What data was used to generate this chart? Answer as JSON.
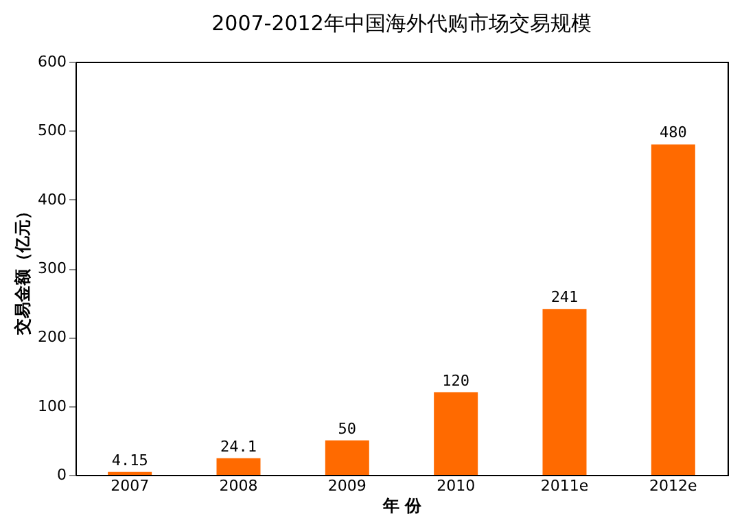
{
  "chart_data": {
    "type": "bar",
    "title": "2007-2012年中国海外代购市场交易规模",
    "xlabel": "年 份",
    "ylabel": "交易金额（亿元）",
    "categories": [
      "2007",
      "2008",
      "2009",
      "2010",
      "2011e",
      "2012e"
    ],
    "values": [
      4.15,
      24.1,
      50,
      120,
      241,
      480
    ],
    "color": "#ff6a00",
    "ylim": [
      0,
      600
    ],
    "yticks": [
      0,
      100,
      200,
      300,
      400,
      500,
      600
    ],
    "grid": false,
    "data_labels": true
  }
}
